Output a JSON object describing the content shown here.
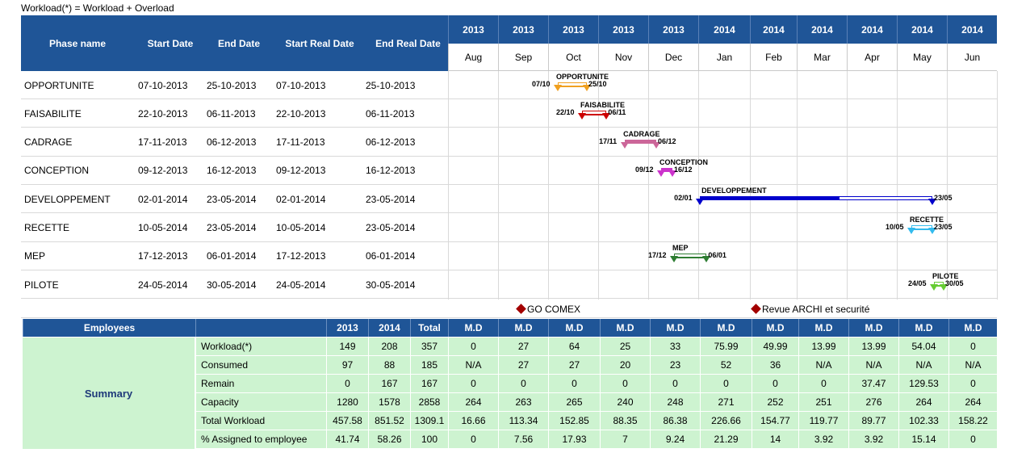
{
  "caption": "Workload(*) = Workload + Overload",
  "header": {
    "phase_name": "Phase name",
    "start_date": "Start Date",
    "end_date": "End Date",
    "start_real_date": "Start Real Date",
    "end_real_date": "End Real Date"
  },
  "timeline": {
    "years": [
      "2013",
      "2013",
      "2013",
      "2013",
      "2013",
      "2014",
      "2014",
      "2014",
      "2014",
      "2014",
      "2014"
    ],
    "months": [
      "Aug",
      "Sep",
      "Oct",
      "Nov",
      "Dec",
      "Jan",
      "Feb",
      "Mar",
      "Apr",
      "May",
      "Jun"
    ]
  },
  "phases": [
    {
      "name": "OPPORTUNITE",
      "start": "07-10-2013",
      "end": "25-10-2013",
      "real_start": "07-10-2013",
      "real_end": "25-10-2013",
      "label_start": "07/10",
      "label_end": "25/10",
      "color": "#f0a020"
    },
    {
      "name": "FAISABILITE",
      "start": "22-10-2013",
      "end": "06-11-2013",
      "real_start": "22-10-2013",
      "real_end": "06-11-2013",
      "label_start": "22/10",
      "label_end": "06/11",
      "color": "#cc0000"
    },
    {
      "name": "CADRAGE",
      "start": "17-11-2013",
      "end": "06-12-2013",
      "real_start": "17-11-2013",
      "real_end": "06-12-2013",
      "label_start": "17/11",
      "label_end": "06/12",
      "color": "#cc6699"
    },
    {
      "name": "CONCEPTION",
      "start": "09-12-2013",
      "end": "16-12-2013",
      "real_start": "09-12-2013",
      "real_end": "16-12-2013",
      "label_start": "09/12",
      "label_end": "16/12",
      "color": "#cc33cc"
    },
    {
      "name": "DEVELOPPEMENT",
      "start": "02-01-2014",
      "end": "23-05-2014",
      "real_start": "02-01-2014",
      "real_end": "23-05-2014",
      "label_start": "02/01",
      "label_end": "23/05",
      "color": "#0000cc"
    },
    {
      "name": "RECETTE",
      "start": "10-05-2014",
      "end": "23-05-2014",
      "real_start": "10-05-2014",
      "real_end": "23-05-2014",
      "label_start": "10/05",
      "label_end": "23/05",
      "color": "#33bbee"
    },
    {
      "name": "MEP",
      "start": "17-12-2013",
      "end": "06-01-2014",
      "real_start": "17-12-2013",
      "real_end": "06-01-2014",
      "label_start": "17/12",
      "label_end": "06/01",
      "color": "#2e7d32"
    },
    {
      "name": "PILOTE",
      "start": "24-05-2014",
      "end": "30-05-2014",
      "real_start": "24-05-2014",
      "real_end": "30-05-2014",
      "label_start": "24/05",
      "label_end": "30/05",
      "color": "#66cc33"
    }
  ],
  "milestones": [
    {
      "label": "GO COMEX"
    },
    {
      "label": "Revue ARCHI et securité"
    }
  ],
  "summary": {
    "employees_header": "Employees",
    "col_headers": [
      "2013",
      "2014",
      "Total",
      "M.D",
      "M.D",
      "M.D",
      "M.D",
      "M.D",
      "M.D",
      "M.D",
      "M.D",
      "M.D",
      "M.D",
      "M.D"
    ],
    "block_label": "Summary",
    "rows": [
      {
        "label": "Workload(*)",
        "values": [
          "149",
          "208",
          "357",
          "0",
          "27",
          "64",
          "25",
          "33",
          "75.99",
          "49.99",
          "13.99",
          "13.99",
          "54.04",
          "0"
        ]
      },
      {
        "label": "Consumed",
        "values": [
          "97",
          "88",
          "185",
          "N/A",
          "27",
          "27",
          "20",
          "23",
          "52",
          "36",
          "N/A",
          "N/A",
          "N/A",
          "N/A"
        ]
      },
      {
        "label": "Remain",
        "values": [
          "0",
          "167",
          "167",
          "0",
          "0",
          "0",
          "0",
          "0",
          "0",
          "0",
          "0",
          "37.47",
          "129.53",
          "0"
        ]
      },
      {
        "label": "Capacity",
        "values": [
          "1280",
          "1578",
          "2858",
          "264",
          "263",
          "265",
          "240",
          "248",
          "271",
          "252",
          "251",
          "276",
          "264",
          "264"
        ]
      },
      {
        "label": "Total Workload",
        "values": [
          "457.58",
          "851.52",
          "1309.1",
          "16.66",
          "113.34",
          "152.85",
          "88.35",
          "86.38",
          "226.66",
          "154.77",
          "119.77",
          "89.77",
          "102.33",
          "158.22"
        ]
      },
      {
        "label": "% Assigned to employee",
        "values": [
          "41.74",
          "58.26",
          "100",
          "0",
          "7.56",
          "17.93",
          "7",
          "9.24",
          "21.29",
          "14",
          "3.92",
          "3.92",
          "15.14",
          "0"
        ]
      }
    ]
  }
}
